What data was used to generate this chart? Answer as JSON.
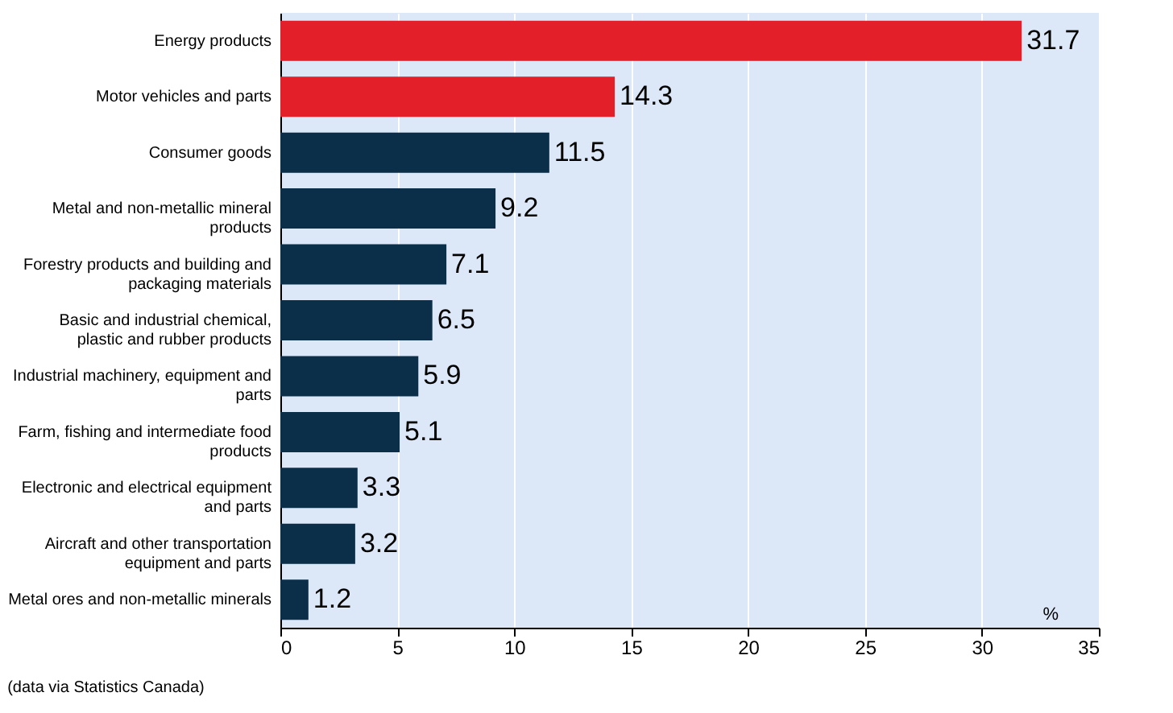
{
  "chart_data": {
    "type": "bar",
    "orientation": "horizontal",
    "categories": [
      "Energy products",
      "Motor vehicles and parts",
      "Consumer goods",
      "Metal and non-metallic mineral products",
      "Forestry products and building and packaging materials",
      "Basic and industrial chemical, plastic and rubber products",
      "Industrial machinery, equipment and parts",
      "Farm, fishing and intermediate food products",
      "Electronic and electrical equipment and parts",
      "Aircraft and other transportation equipment and parts",
      "Metal ores and non-metallic minerals"
    ],
    "values": [
      31.7,
      14.3,
      11.5,
      9.2,
      7.1,
      6.5,
      5.9,
      5.1,
      3.3,
      3.2,
      1.2
    ],
    "colors": [
      "#e3202a",
      "#e3202a",
      "#0b2f48",
      "#0b2f48",
      "#0b2f48",
      "#0b2f48",
      "#0b2f48",
      "#0b2f48",
      "#0b2f48",
      "#0b2f48",
      "#0b2f48"
    ],
    "xlim": [
      0,
      35
    ],
    "xticks": [
      0,
      5,
      10,
      15,
      20,
      25,
      30,
      35
    ],
    "grid": "x",
    "data_labels": true,
    "annotations": [
      "%",
      "(data via Statistics Canada)"
    ]
  }
}
